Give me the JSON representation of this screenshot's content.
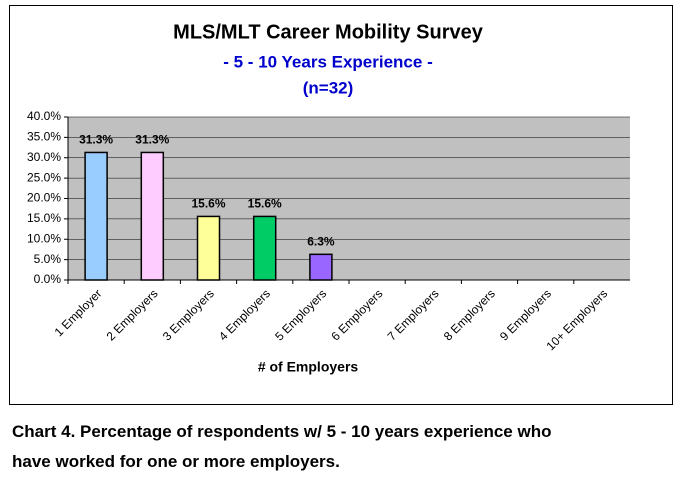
{
  "chart_data": {
    "type": "bar",
    "title": "MLS/MLT Career Mobility Survey",
    "subtitle": "- 5 - 10 Years Experience -",
    "note": "(n=32)",
    "x_label": "# of Employers",
    "categories": [
      "1 Employer",
      "2 Employers",
      "3 Employers",
      "4 Employers",
      "5 Employers",
      "6 Employers",
      "7 Employers",
      "8 Employers",
      "9 Employers",
      "10+ Employers"
    ],
    "values": [
      31.3,
      31.3,
      15.6,
      15.6,
      6.3,
      null,
      null,
      null,
      null,
      null
    ],
    "value_labels": [
      "31.3%",
      "31.3%",
      "15.6%",
      "15.6%",
      "6.3%",
      null,
      null,
      null,
      null,
      null
    ],
    "colors": [
      "#99ccff",
      "#ffccff",
      "#ffff99",
      "#00cc66",
      "#9966ff",
      null,
      null,
      null,
      null,
      null
    ],
    "ylim": [
      0,
      40
    ],
    "yticks": [
      {
        "value": 0,
        "label": "0.0%"
      },
      {
        "value": 5,
        "label": "5.0%"
      },
      {
        "value": 10,
        "label": "10.0%"
      },
      {
        "value": 15,
        "label": "15.0%"
      },
      {
        "value": 20,
        "label": "20.0%"
      },
      {
        "value": 25,
        "label": "25.0%"
      },
      {
        "value": 30,
        "label": "30.0%"
      },
      {
        "value": 35,
        "label": "35.0%"
      },
      {
        "value": 40,
        "label": "40.0%"
      }
    ],
    "grid": true,
    "caption": [
      "Chart 4. Percentage of respondents w/ 5 - 10 years experience who",
      "have worked for one or more employers."
    ]
  }
}
